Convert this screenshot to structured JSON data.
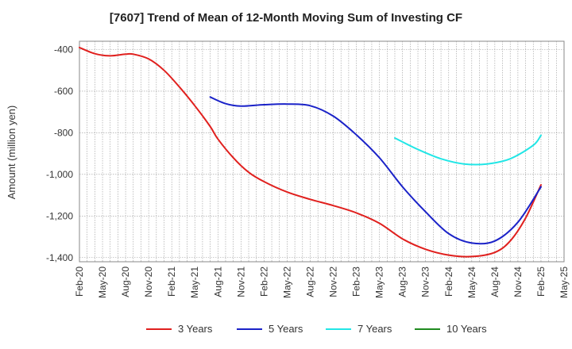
{
  "chart_data": {
    "type": "line",
    "title": "[7607]  Trend of Mean of 12-Month Moving Sum of Investing CF",
    "xlabel": "",
    "ylabel": "Amount (million yen)",
    "ylim": [
      -1420,
      -360
    ],
    "yticks": [
      -400,
      -600,
      -800,
      -1000,
      -1200,
      -1400
    ],
    "ytick_labels": [
      "-400",
      "-600",
      "-800",
      "-1,000",
      "-1,200",
      "-1,400"
    ],
    "x_categories": [
      "Feb-20",
      "May-20",
      "Aug-20",
      "Nov-20",
      "Feb-21",
      "May-21",
      "Aug-21",
      "Nov-21",
      "Feb-22",
      "May-22",
      "Aug-22",
      "Nov-22",
      "Feb-23",
      "May-23",
      "Aug-23",
      "Nov-23",
      "Feb-24",
      "May-24",
      "Aug-24",
      "Nov-24",
      "Feb-25",
      "May-25"
    ],
    "x_start": "2020-02",
    "x_end": "2025-05",
    "grid": true,
    "legend_position": "bottom",
    "series": [
      {
        "name": "3 Years",
        "color": "#e0201e",
        "points": [
          [
            "2020-02",
            -390
          ],
          [
            "2020-04",
            -420
          ],
          [
            "2020-06",
            -430
          ],
          [
            "2020-08",
            -422
          ],
          [
            "2020-09",
            -422
          ],
          [
            "2020-11",
            -445
          ],
          [
            "2021-01",
            -500
          ],
          [
            "2021-03",
            -580
          ],
          [
            "2021-05",
            -670
          ],
          [
            "2021-07",
            -770
          ],
          [
            "2021-08",
            -830
          ],
          [
            "2021-10",
            -920
          ],
          [
            "2021-12",
            -990
          ],
          [
            "2022-02",
            -1035
          ],
          [
            "2022-05",
            -1085
          ],
          [
            "2022-08",
            -1120
          ],
          [
            "2022-11",
            -1150
          ],
          [
            "2023-02",
            -1185
          ],
          [
            "2023-05",
            -1235
          ],
          [
            "2023-08",
            -1310
          ],
          [
            "2023-11",
            -1360
          ],
          [
            "2024-02",
            -1388
          ],
          [
            "2024-05",
            -1395
          ],
          [
            "2024-08",
            -1375
          ],
          [
            "2024-10",
            -1320
          ],
          [
            "2024-12",
            -1210
          ],
          [
            "2025-02",
            -1050
          ]
        ]
      },
      {
        "name": "5 Years",
        "color": "#1a22c8",
        "points": [
          [
            "2021-07",
            -628
          ],
          [
            "2021-09",
            -660
          ],
          [
            "2021-11",
            -672
          ],
          [
            "2022-02",
            -665
          ],
          [
            "2022-05",
            -662
          ],
          [
            "2022-08",
            -670
          ],
          [
            "2022-11",
            -720
          ],
          [
            "2023-02",
            -810
          ],
          [
            "2023-05",
            -920
          ],
          [
            "2023-08",
            -1060
          ],
          [
            "2023-11",
            -1180
          ],
          [
            "2024-02",
            -1285
          ],
          [
            "2024-05",
            -1330
          ],
          [
            "2024-08",
            -1320
          ],
          [
            "2024-11",
            -1230
          ],
          [
            "2025-02",
            -1060
          ]
        ]
      },
      {
        "name": "7 Years",
        "color": "#22e6e6",
        "points": [
          [
            "2023-07",
            -825
          ],
          [
            "2023-10",
            -880
          ],
          [
            "2024-01",
            -925
          ],
          [
            "2024-04",
            -950
          ],
          [
            "2024-07",
            -950
          ],
          [
            "2024-10",
            -925
          ],
          [
            "2025-01",
            -860
          ],
          [
            "2025-02",
            -812
          ]
        ]
      },
      {
        "name": "10 Years",
        "color": "#1f8a1f",
        "points": []
      }
    ]
  }
}
